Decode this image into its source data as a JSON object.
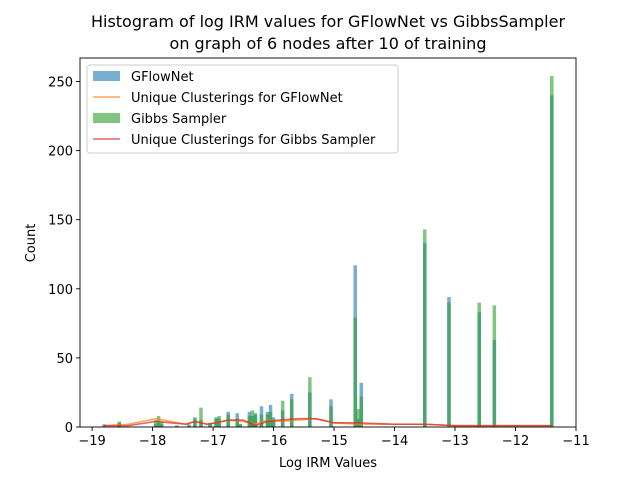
{
  "chart_data": {
    "type": "bar",
    "title_lines": [
      "Histogram of log IRM values for GFlowNet vs GibbsSampler",
      "on graph of 6 nodes after 10 of training"
    ],
    "xlabel": "Log IRM Values",
    "ylabel": "Count",
    "xlim": [
      -19.2,
      -11.0
    ],
    "ylim": [
      0,
      267
    ],
    "x_ticks": [
      -19,
      -18,
      -17,
      -16,
      -15,
      -14,
      -13,
      -12,
      -11
    ],
    "x_tick_labels": [
      "−19",
      "−18",
      "−17",
      "−16",
      "−15",
      "−14",
      "−13",
      "−12",
      "−11"
    ],
    "y_ticks": [
      0,
      50,
      100,
      150,
      200,
      250
    ],
    "y_tick_labels": [
      "0",
      "50",
      "100",
      "150",
      "200",
      "250"
    ],
    "bin_width": 0.058,
    "grid": false,
    "legend_position": "top-left",
    "colors": {
      "gflownet_bar": "#1f77b4",
      "gflownet_line": "#ff7f0e",
      "gibbs_bar": "#2ca02c",
      "gibbs_line": "#d62728"
    },
    "series": [
      {
        "name": "GFlowNet",
        "kind": "hist",
        "x": [
          -18.8,
          -18.55,
          -17.95,
          -17.9,
          -17.85,
          -17.6,
          -17.4,
          -17.3,
          -17.2,
          -17.05,
          -16.95,
          -16.9,
          -16.75,
          -16.6,
          -16.55,
          -16.4,
          -16.35,
          -16.3,
          -16.2,
          -16.1,
          -16.05,
          -16.0,
          -15.85,
          -15.7,
          -15.4,
          -15.05,
          -14.65,
          -14.6,
          -14.55,
          -13.5,
          -13.1,
          -12.6,
          -12.35,
          -11.4
        ],
        "values": [
          2,
          3,
          2,
          3,
          2,
          1,
          2,
          7,
          5,
          2,
          7,
          6,
          11,
          10,
          2,
          11,
          8,
          9,
          15,
          11,
          16,
          7,
          12,
          24,
          25,
          20,
          117,
          6,
          32,
          133,
          94,
          83,
          63,
          240
        ]
      },
      {
        "name": "Unique Clusterings for GFlowNet",
        "kind": "line",
        "x": [
          -18.8,
          -18.4,
          -17.95,
          -17.7,
          -17.45,
          -17.3,
          -17.1,
          -16.95,
          -16.75,
          -16.5,
          -16.3,
          -16.1,
          -15.9,
          -15.6,
          -15.3,
          -15.0,
          -14.6,
          -14.0,
          -13.5,
          -13.0,
          -12.5,
          -12.0,
          -11.4
        ],
        "values": [
          1,
          2,
          6,
          4,
          2,
          4,
          2,
          3,
          5,
          4,
          2,
          5,
          4,
          5,
          6,
          3,
          2,
          2,
          2,
          1,
          1,
          1,
          1
        ]
      },
      {
        "name": "Gibbs Sampler",
        "kind": "hist",
        "x": [
          -18.8,
          -18.55,
          -17.95,
          -17.9,
          -17.85,
          -17.6,
          -17.4,
          -17.3,
          -17.2,
          -17.05,
          -16.95,
          -16.9,
          -16.75,
          -16.6,
          -16.55,
          -16.4,
          -16.35,
          -16.3,
          -16.2,
          -16.1,
          -16.05,
          -16.0,
          -15.85,
          -15.7,
          -15.4,
          -15.05,
          -14.65,
          -14.6,
          -14.55,
          -13.5,
          -13.1,
          -12.6,
          -12.35,
          -11.4
        ],
        "values": [
          1,
          4,
          5,
          8,
          4,
          1,
          1,
          6,
          14,
          3,
          6,
          8,
          9,
          6,
          2,
          8,
          12,
          10,
          9,
          9,
          11,
          4,
          19,
          20,
          36,
          15,
          79,
          13,
          22,
          143,
          90,
          90,
          88,
          254
        ]
      },
      {
        "name": "Unique Clusterings for Gibbs Sampler",
        "kind": "line",
        "x": [
          -18.8,
          -18.4,
          -17.95,
          -17.7,
          -17.45,
          -17.3,
          -17.1,
          -16.95,
          -16.75,
          -16.5,
          -16.3,
          -16.1,
          -15.9,
          -15.6,
          -15.3,
          -15.0,
          -14.6,
          -14.0,
          -13.5,
          -13.0,
          -12.5,
          -12.0,
          -11.4
        ],
        "values": [
          1,
          1,
          4,
          3,
          2,
          4,
          2,
          3,
          5,
          5,
          1,
          4,
          5,
          6,
          6,
          3,
          3,
          2,
          2,
          1,
          1,
          1,
          1
        ]
      }
    ]
  }
}
